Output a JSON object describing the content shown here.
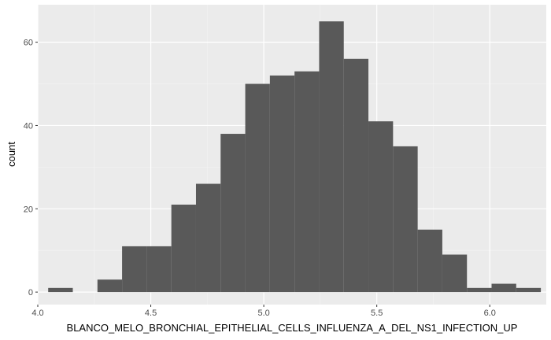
{
  "chart_data": {
    "type": "histogram",
    "title": "",
    "xlabel": "BLANCO_MELO_BRONCHIAL_EPITHELIAL_CELLS_INFLUENZA_A_DEL_NS1_INFECTION_UP",
    "ylabel": "count",
    "xlim": [
      4.0,
      6.25
    ],
    "ylim": [
      -3,
      69
    ],
    "x_ticks": [
      4.0,
      4.5,
      5.0,
      5.5,
      6.0
    ],
    "x_tick_labels": [
      "4.0",
      "4.5",
      "5.0",
      "5.5",
      "6.0"
    ],
    "y_ticks": [
      0,
      20,
      40,
      60
    ],
    "y_tick_labels": [
      "0",
      "20",
      "40",
      "60"
    ],
    "bin_width": 0.109,
    "bins": [
      {
        "x0": 4.046,
        "x1": 4.155,
        "count": 1
      },
      {
        "x0": 4.155,
        "x1": 4.264,
        "count": 0
      },
      {
        "x0": 4.264,
        "x1": 4.373,
        "count": 3
      },
      {
        "x0": 4.373,
        "x1": 4.482,
        "count": 11
      },
      {
        "x0": 4.482,
        "x1": 4.591,
        "count": 11
      },
      {
        "x0": 4.591,
        "x1": 4.7,
        "count": 21
      },
      {
        "x0": 4.7,
        "x1": 4.809,
        "count": 26
      },
      {
        "x0": 4.809,
        "x1": 4.918,
        "count": 38
      },
      {
        "x0": 4.918,
        "x1": 5.027,
        "count": 50
      },
      {
        "x0": 5.027,
        "x1": 5.136,
        "count": 52
      },
      {
        "x0": 5.136,
        "x1": 5.245,
        "count": 53
      },
      {
        "x0": 5.245,
        "x1": 5.354,
        "count": 65
      },
      {
        "x0": 5.354,
        "x1": 5.463,
        "count": 56
      },
      {
        "x0": 5.463,
        "x1": 5.572,
        "count": 41
      },
      {
        "x0": 5.572,
        "x1": 5.681,
        "count": 35
      },
      {
        "x0": 5.681,
        "x1": 5.79,
        "count": 15
      },
      {
        "x0": 5.79,
        "x1": 5.899,
        "count": 9
      },
      {
        "x0": 5.899,
        "x1": 6.008,
        "count": 1
      },
      {
        "x0": 6.008,
        "x1": 6.117,
        "count": 2
      },
      {
        "x0": 6.117,
        "x1": 6.226,
        "count": 1
      }
    ],
    "grid": true,
    "legend": "none",
    "colors": {
      "panel_background": "#ebebeb",
      "grid_major": "#ffffff",
      "grid_minor": "#f4f4f4",
      "bar_fill": "#595959",
      "tick_label": "#4d4d4d",
      "axis_title": "#000000"
    }
  }
}
